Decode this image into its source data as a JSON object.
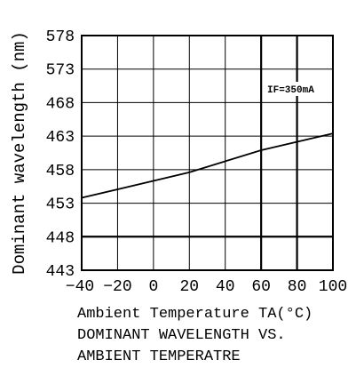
{
  "chart_data": {
    "type": "line",
    "title": "",
    "xlabel": "Ambient Temperature TA(°C)",
    "ylabel": "Dominant wavelength (nm)",
    "xlim": [
      -40,
      100
    ],
    "ylim": [
      443,
      578
    ],
    "x_ticks": [
      -40,
      -20,
      0,
      20,
      40,
      60,
      80,
      100
    ],
    "x_tick_labels": [
      "−40",
      "−20",
      "0",
      "20",
      "40",
      "60",
      "80",
      "100"
    ],
    "y_ticks": [
      443,
      448,
      453,
      458,
      463,
      468,
      573,
      578
    ],
    "y_tick_labels": [
      "443",
      "448",
      "453",
      "458",
      "463",
      "468",
      "573",
      "578"
    ],
    "grid": true,
    "series": [
      {
        "name": "",
        "x": [
          -40,
          20,
          60,
          100
        ],
        "y": [
          453.8,
          457.6,
          460.9,
          463.4
        ]
      }
    ],
    "annotations": [
      {
        "text": "IF=350mA"
      }
    ]
  },
  "captions": {
    "line1": "Ambient Temperature TA(°C)",
    "line2": "DOMINANT WAVELENGTH VS.",
    "line3": "AMBIENT TEMPERATRE"
  },
  "colors": {
    "ink": "#000000",
    "background": "#ffffff"
  }
}
